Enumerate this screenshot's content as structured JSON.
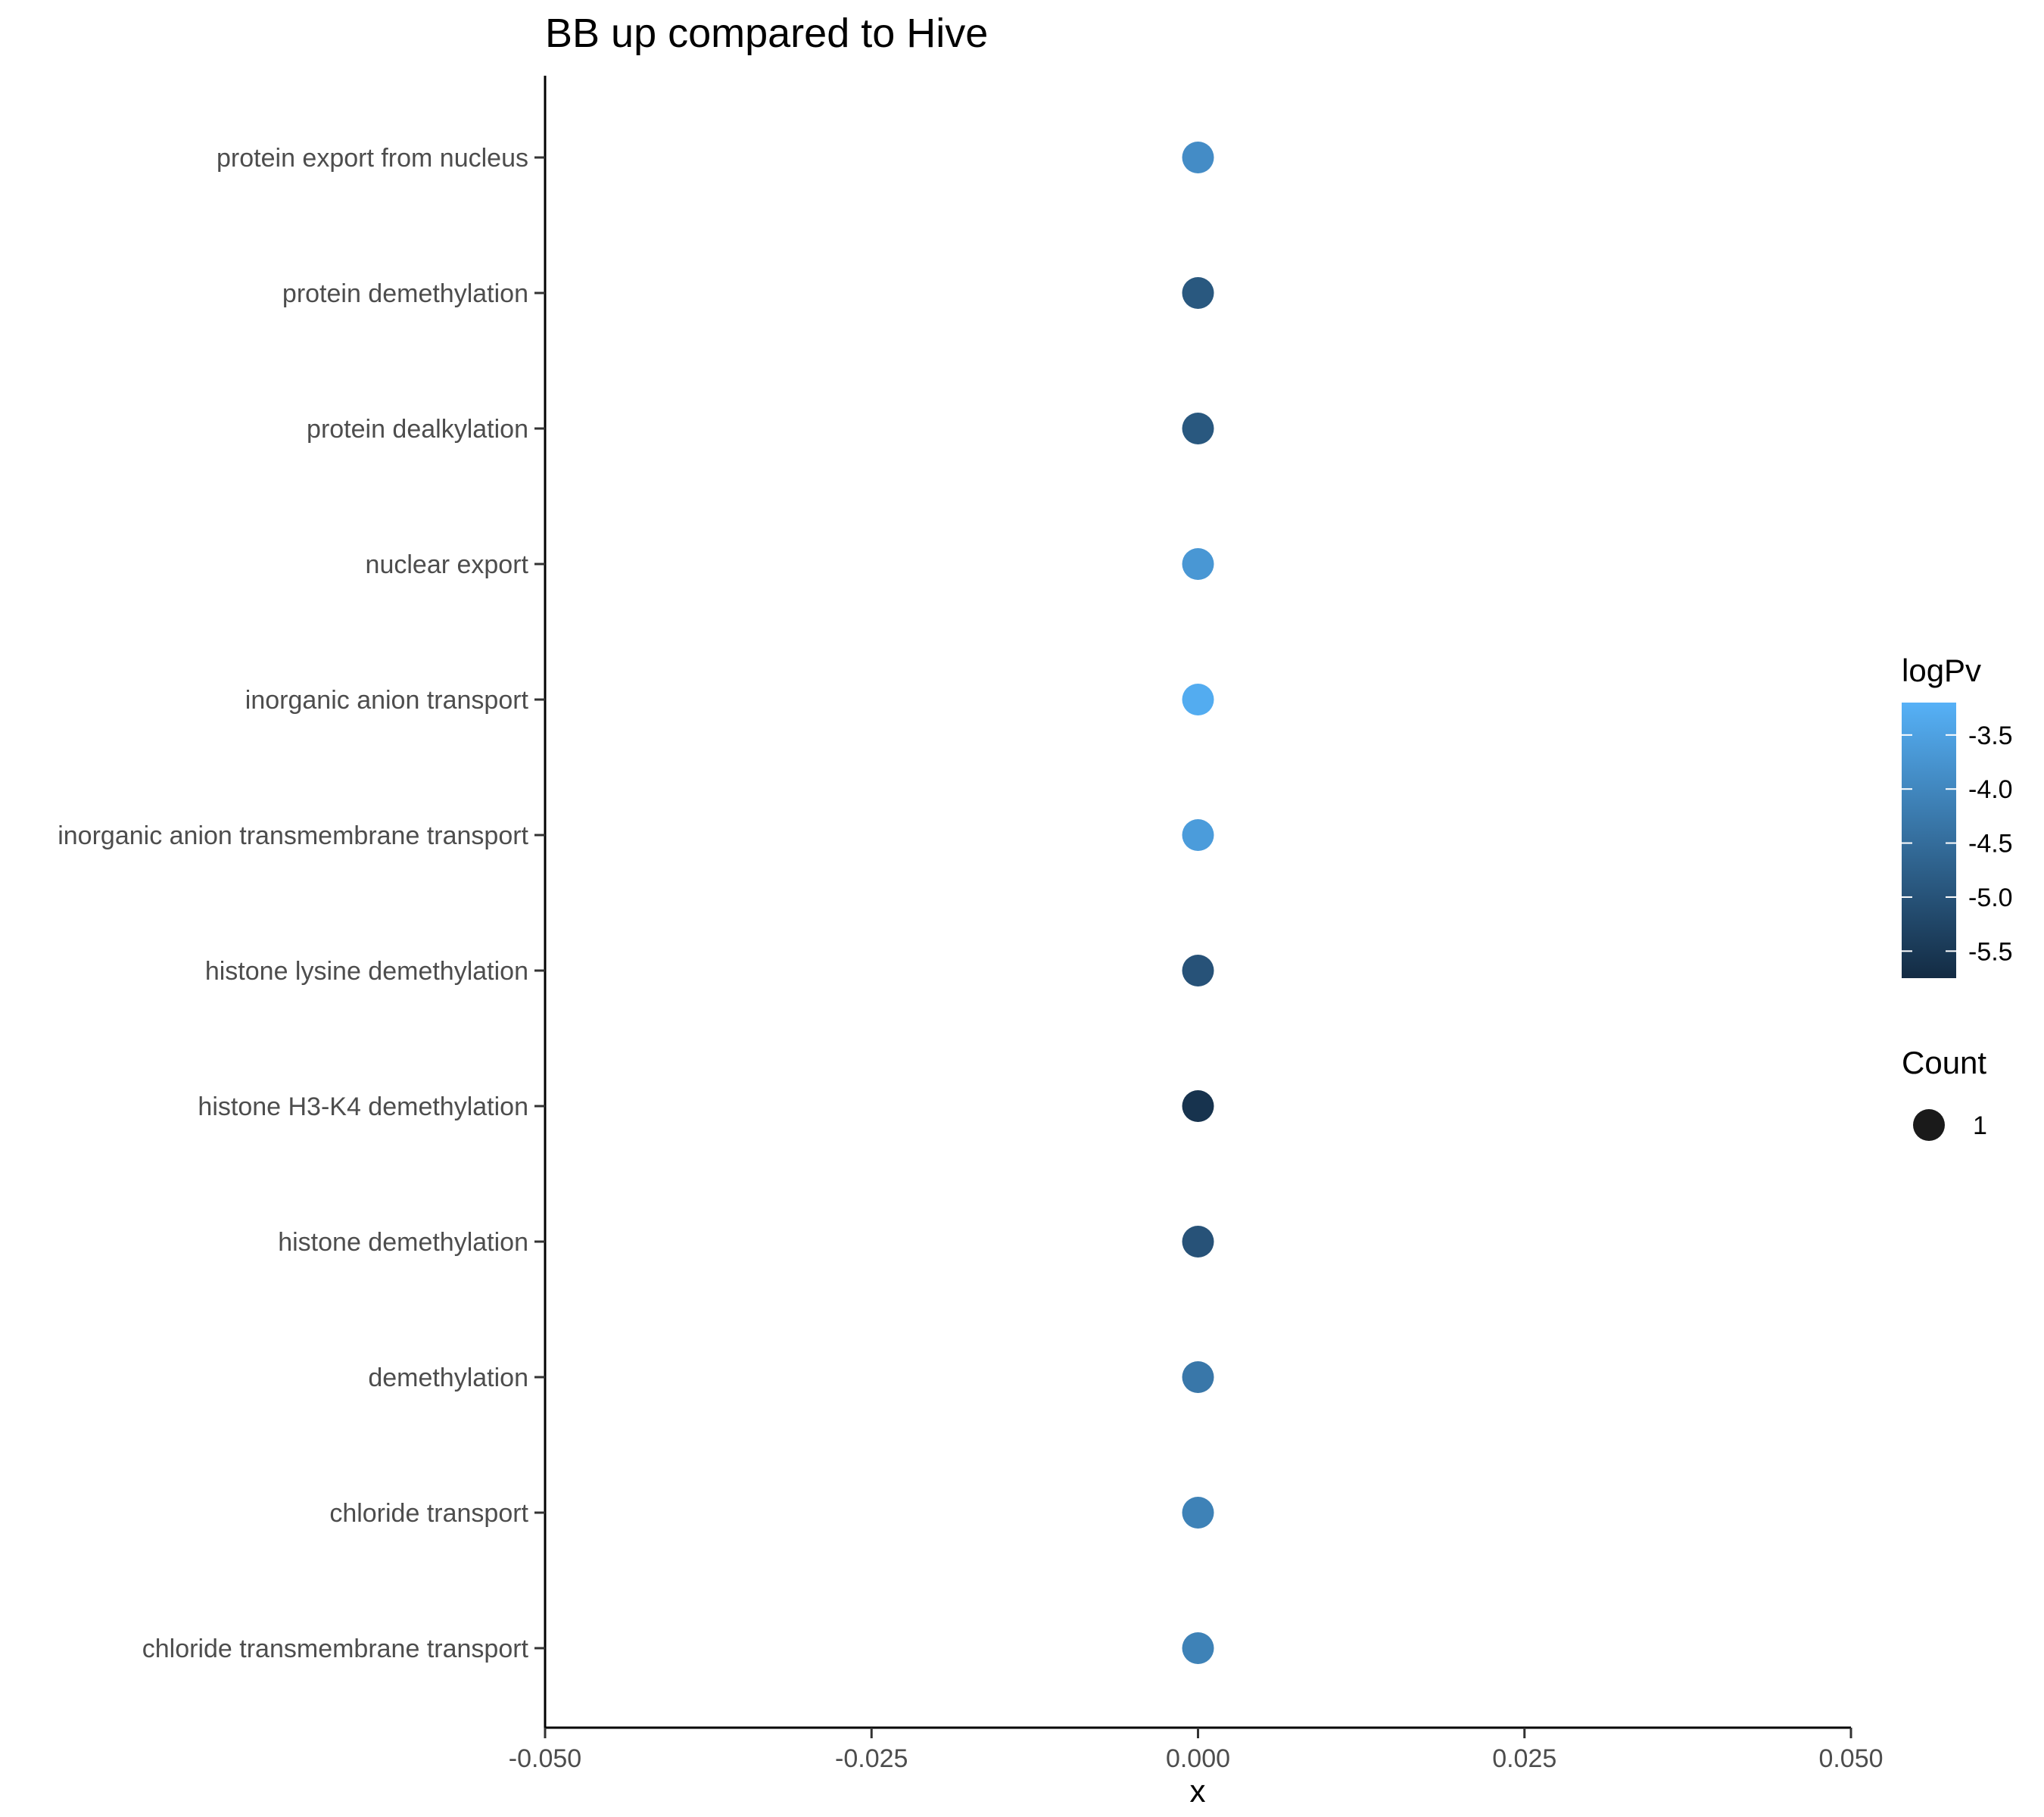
{
  "chart_data": {
    "type": "scatter",
    "title": "BB up compared to Hive",
    "xlabel": "x",
    "ylabel": "",
    "xlim": [
      -0.05,
      0.05
    ],
    "x_ticks": [
      "-0.050",
      "-0.025",
      "0.000",
      "0.025",
      "0.050"
    ],
    "x_tick_values": [
      -0.05,
      -0.025,
      0,
      0.025,
      0.05
    ],
    "categories": [
      "protein export from nucleus",
      "protein demethylation",
      "protein dealkylation",
      "nuclear export",
      "inorganic anion transport",
      "inorganic anion transmembrane transport",
      "histone lysine demethylation",
      "histone H3-K4 demethylation",
      "histone demethylation",
      "demethylation",
      "chloride transport",
      "chloride transmembrane transport"
    ],
    "points": [
      {
        "term": "protein export from nucleus",
        "x": 0,
        "logPv": -3.9,
        "count": 1
      },
      {
        "term": "protein demethylation",
        "x": 0,
        "logPv": -4.9,
        "count": 1
      },
      {
        "term": "protein dealkylation",
        "x": 0,
        "logPv": -4.9,
        "count": 1
      },
      {
        "term": "nuclear export",
        "x": 0,
        "logPv": -3.7,
        "count": 1
      },
      {
        "term": "inorganic anion transport",
        "x": 0,
        "logPv": -3.3,
        "count": 1
      },
      {
        "term": "inorganic anion transmembrane transport",
        "x": 0,
        "logPv": -3.6,
        "count": 1
      },
      {
        "term": "histone lysine demethylation",
        "x": 0,
        "logPv": -5.0,
        "count": 1
      },
      {
        "term": "histone H3-K4 demethylation",
        "x": 0,
        "logPv": -5.6,
        "count": 1
      },
      {
        "term": "histone demethylation",
        "x": 0,
        "logPv": -5.0,
        "count": 1
      },
      {
        "term": "demethylation",
        "x": 0,
        "logPv": -4.3,
        "count": 1
      },
      {
        "term": "chloride transport",
        "x": 0,
        "logPv": -4.1,
        "count": 1
      },
      {
        "term": "chloride transmembrane transport",
        "x": 0,
        "logPv": -4.1,
        "count": 1
      }
    ],
    "color_legend": {
      "title": "logPv",
      "breaks": [
        -3.5,
        -4.0,
        -4.5,
        -5.0,
        -5.5
      ],
      "labels": [
        "-3.5",
        "-4.0",
        "-4.5",
        "-5.0",
        "-5.5"
      ],
      "range": [
        -5.75,
        -3.2
      ],
      "low_color": "#132b43",
      "high_color": "#56b1f7"
    },
    "size_legend": {
      "title": "Count",
      "labels": [
        "1"
      ]
    },
    "grid": false,
    "legend_position": "right"
  }
}
